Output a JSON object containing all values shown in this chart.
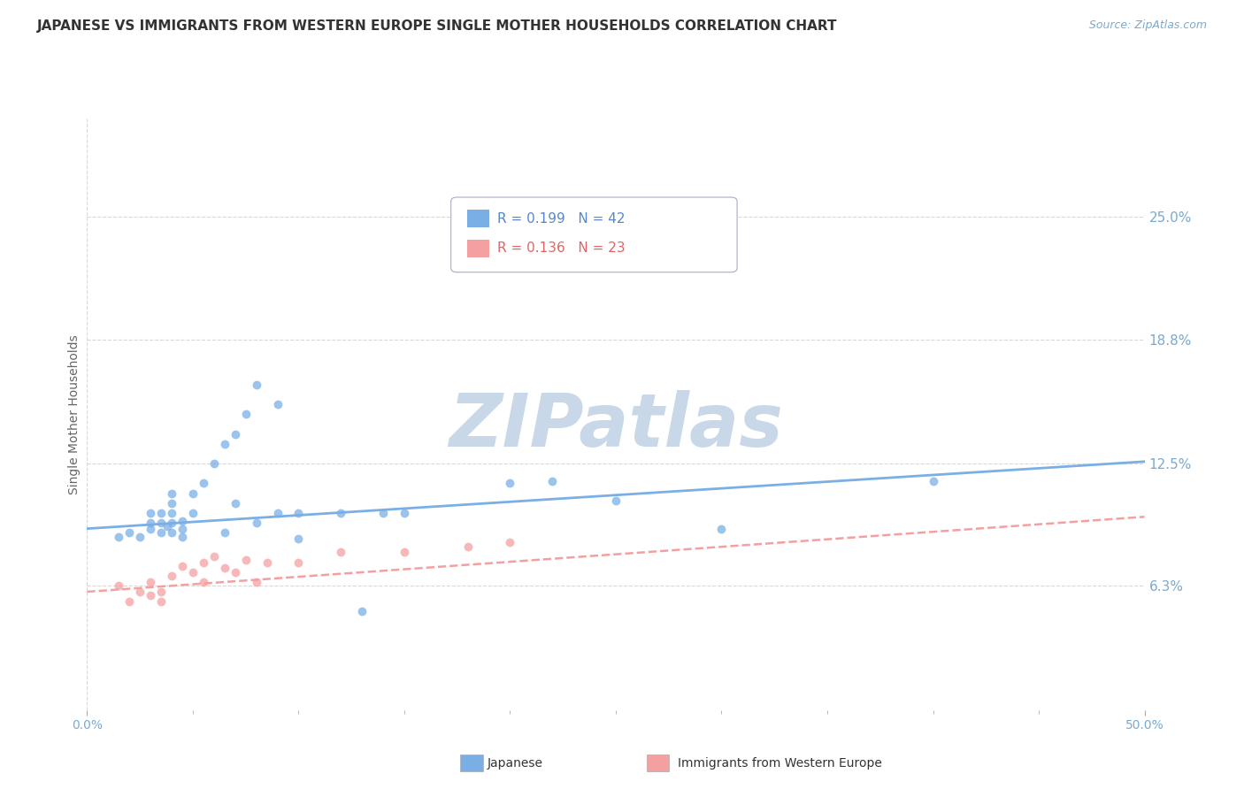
{
  "title": "JAPANESE VS IMMIGRANTS FROM WESTERN EUROPE SINGLE MOTHER HOUSEHOLDS CORRELATION CHART",
  "source": "Source: ZipAtlas.com",
  "ylabel": "Single Mother Households",
  "xlim": [
    0.0,
    0.5
  ],
  "ylim": [
    0.0,
    0.3
  ],
  "ytick_labels_right": [
    "6.3%",
    "12.5%",
    "18.8%",
    "25.0%"
  ],
  "ytick_values_right": [
    0.063,
    0.125,
    0.188,
    0.25
  ],
  "background_color": "#ffffff",
  "grid_color": "#d8d8d8",
  "watermark_text": "ZIPatlas",
  "watermark_color": "#c8d8e8",
  "japanese_color": "#7aafe6",
  "western_europe_color": "#f4a0a0",
  "japanese_R": 0.199,
  "japanese_N": 42,
  "western_europe_R": 0.136,
  "western_europe_N": 23,
  "japanese_scatter": [
    [
      0.015,
      0.088
    ],
    [
      0.02,
      0.09
    ],
    [
      0.025,
      0.088
    ],
    [
      0.03,
      0.092
    ],
    [
      0.03,
      0.095
    ],
    [
      0.03,
      0.1
    ],
    [
      0.035,
      0.09
    ],
    [
      0.035,
      0.095
    ],
    [
      0.035,
      0.1
    ],
    [
      0.038,
      0.093
    ],
    [
      0.04,
      0.09
    ],
    [
      0.04,
      0.095
    ],
    [
      0.04,
      0.1
    ],
    [
      0.04,
      0.105
    ],
    [
      0.04,
      0.11
    ],
    [
      0.045,
      0.088
    ],
    [
      0.045,
      0.092
    ],
    [
      0.045,
      0.096
    ],
    [
      0.05,
      0.1
    ],
    [
      0.05,
      0.11
    ],
    [
      0.055,
      0.115
    ],
    [
      0.06,
      0.125
    ],
    [
      0.065,
      0.09
    ],
    [
      0.065,
      0.135
    ],
    [
      0.07,
      0.105
    ],
    [
      0.07,
      0.14
    ],
    [
      0.075,
      0.15
    ],
    [
      0.08,
      0.095
    ],
    [
      0.08,
      0.165
    ],
    [
      0.09,
      0.1
    ],
    [
      0.09,
      0.155
    ],
    [
      0.1,
      0.087
    ],
    [
      0.1,
      0.1
    ],
    [
      0.12,
      0.1
    ],
    [
      0.13,
      0.05
    ],
    [
      0.14,
      0.1
    ],
    [
      0.15,
      0.1
    ],
    [
      0.2,
      0.115
    ],
    [
      0.22,
      0.116
    ],
    [
      0.25,
      0.106
    ],
    [
      0.3,
      0.092
    ],
    [
      0.4,
      0.116
    ]
  ],
  "western_europe_scatter": [
    [
      0.015,
      0.063
    ],
    [
      0.02,
      0.055
    ],
    [
      0.025,
      0.06
    ],
    [
      0.03,
      0.058
    ],
    [
      0.03,
      0.065
    ],
    [
      0.035,
      0.055
    ],
    [
      0.035,
      0.06
    ],
    [
      0.04,
      0.068
    ],
    [
      0.045,
      0.073
    ],
    [
      0.05,
      0.07
    ],
    [
      0.055,
      0.065
    ],
    [
      0.055,
      0.075
    ],
    [
      0.06,
      0.078
    ],
    [
      0.065,
      0.072
    ],
    [
      0.07,
      0.07
    ],
    [
      0.075,
      0.076
    ],
    [
      0.08,
      0.065
    ],
    [
      0.085,
      0.075
    ],
    [
      0.1,
      0.075
    ],
    [
      0.12,
      0.08
    ],
    [
      0.15,
      0.08
    ],
    [
      0.18,
      0.083
    ],
    [
      0.2,
      0.085
    ]
  ],
  "japanese_trend": [
    0.0,
    0.5,
    0.092,
    0.126
  ],
  "western_europe_trend": [
    0.0,
    0.5,
    0.06,
    0.098
  ],
  "legend_R1": "R = 0.199",
  "legend_N1": "N = 42",
  "legend_R2": "R = 0.136",
  "legend_N2": "N = 23",
  "legend_label1": "Japanese",
  "legend_label2": "Immigrants from Western Europe"
}
